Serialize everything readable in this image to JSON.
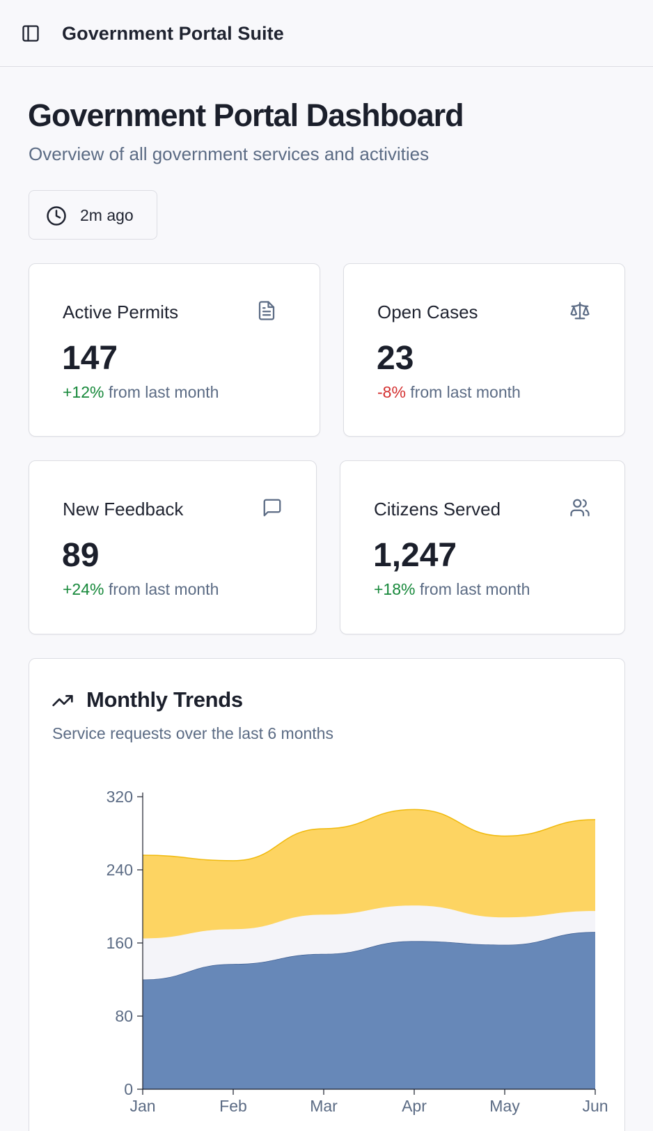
{
  "header": {
    "title": "Government Portal Suite",
    "sidebar_toggle_icon": "sidebar-panel-icon"
  },
  "page": {
    "title": "Government Portal Dashboard",
    "subtitle": "Overview of all government services and activities",
    "last_updated": "2m ago",
    "last_updated_icon": "clock-icon"
  },
  "stats": [
    {
      "label": "Active Permits",
      "value": "147",
      "change": "+12%",
      "change_suffix": " from last month",
      "trend": "positive",
      "icon": "document-icon"
    },
    {
      "label": "Open Cases",
      "value": "23",
      "change": "-8%",
      "change_suffix": " from last month",
      "trend": "negative",
      "icon": "scale-icon"
    },
    {
      "label": "New Feedback",
      "value": "89",
      "change": "+24%",
      "change_suffix": " from last month",
      "trend": "positive",
      "icon": "message-icon"
    },
    {
      "label": "Citizens Served",
      "value": "1,247",
      "change": "+18%",
      "change_suffix": " from last month",
      "trend": "positive",
      "icon": "users-icon"
    }
  ],
  "colors": {
    "positive": "#16883a",
    "negative": "#d42f2f",
    "series_blue": "#6788b8",
    "series_yellow": "#fdd462"
  },
  "trends": {
    "title": "Monthly Trends",
    "subtitle": "Service requests over the last 6 months",
    "icon": "trending-up-icon"
  },
  "chart_data": {
    "type": "area",
    "stacked": true,
    "categories": [
      "Jan",
      "Feb",
      "Mar",
      "Apr",
      "May",
      "Jun"
    ],
    "y_ticks": [
      0,
      80,
      160,
      240,
      320
    ],
    "ylim": [
      0,
      320
    ],
    "series": [
      {
        "values": [
          120,
          137,
          148,
          162,
          158,
          172
        ],
        "color": "#6788b8"
      },
      {
        "values": [
          45,
          38,
          43,
          39,
          30,
          23
        ],
        "color": "#f4f4f9"
      },
      {
        "values": [
          91,
          75,
          94,
          105,
          89,
          100
        ],
        "color": "#fdd462"
      }
    ]
  }
}
